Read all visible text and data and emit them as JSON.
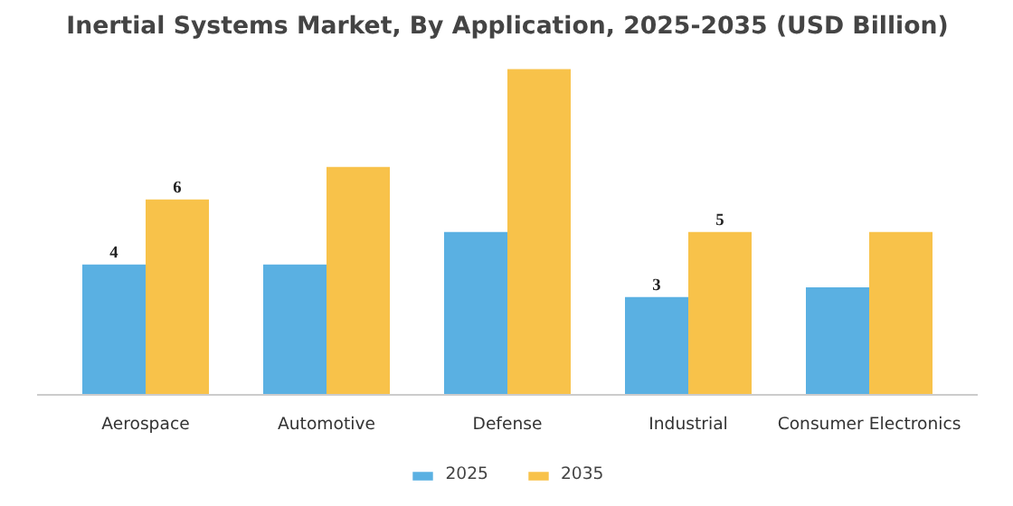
{
  "chart_data": {
    "type": "bar",
    "title": "Inertial Systems Market, By Application, 2025-2035 (USD Billion)",
    "categories": [
      "Aerospace",
      "Automotive",
      "Defense",
      "Industrial",
      "Consumer Electronics"
    ],
    "series": [
      {
        "name": "2025",
        "color": "#5ab0e2",
        "values": [
          4,
          4.0,
          5.0,
          3,
          3.3
        ],
        "value_labels": [
          "4",
          null,
          null,
          "3",
          null
        ]
      },
      {
        "name": "2035",
        "color": "#f8c24a",
        "values": [
          6,
          7.0,
          10.0,
          5,
          5.0
        ],
        "value_labels": [
          "6",
          null,
          null,
          "5",
          null
        ]
      }
    ],
    "legend": "bottom"
  }
}
